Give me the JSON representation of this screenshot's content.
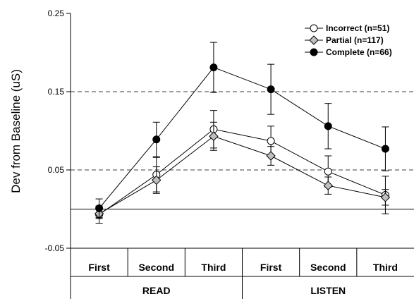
{
  "chart_data": {
    "type": "line",
    "ylabel": "Dev from Baseline (uS)",
    "ylim": [
      -0.05,
      0.25
    ],
    "yticks": [
      -0.05,
      0.05,
      0.15,
      0.25
    ],
    "gridlines": [
      0.05,
      0.15
    ],
    "baseline": 0,
    "categories": [
      "First",
      "Second",
      "Third",
      "First",
      "Second",
      "Third"
    ],
    "groups": [
      {
        "label": "READ",
        "span": [
          0,
          2
        ]
      },
      {
        "label": "LISTEN",
        "span": [
          3,
          5
        ]
      }
    ],
    "legend_position": "top-right",
    "series": [
      {
        "name": "Incorrect (n=51)",
        "marker": "open-circle",
        "color": "#000000",
        "fill": "#ffffff",
        "values": [
          -0.007,
          0.044,
          0.102,
          0.087,
          0.048,
          0.018
        ],
        "errors": [
          0.011,
          0.022,
          0.024,
          0.019,
          0.02,
          0.024
        ]
      },
      {
        "name": "Partial (n=117)",
        "marker": "diamond",
        "color": "#000000",
        "fill": "#bfbfbf",
        "values": [
          -0.006,
          0.037,
          0.093,
          0.068,
          0.03,
          0.015
        ],
        "errors": [
          0.006,
          0.017,
          0.018,
          0.012,
          0.011,
          0.01
        ]
      },
      {
        "name": "Complete (n=66)",
        "marker": "filled-circle",
        "color": "#000000",
        "fill": "#000000",
        "values": [
          0.001,
          0.089,
          0.181,
          0.153,
          0.106,
          0.077
        ],
        "errors": [
          0.012,
          0.022,
          0.032,
          0.032,
          0.029,
          0.028
        ]
      }
    ]
  }
}
